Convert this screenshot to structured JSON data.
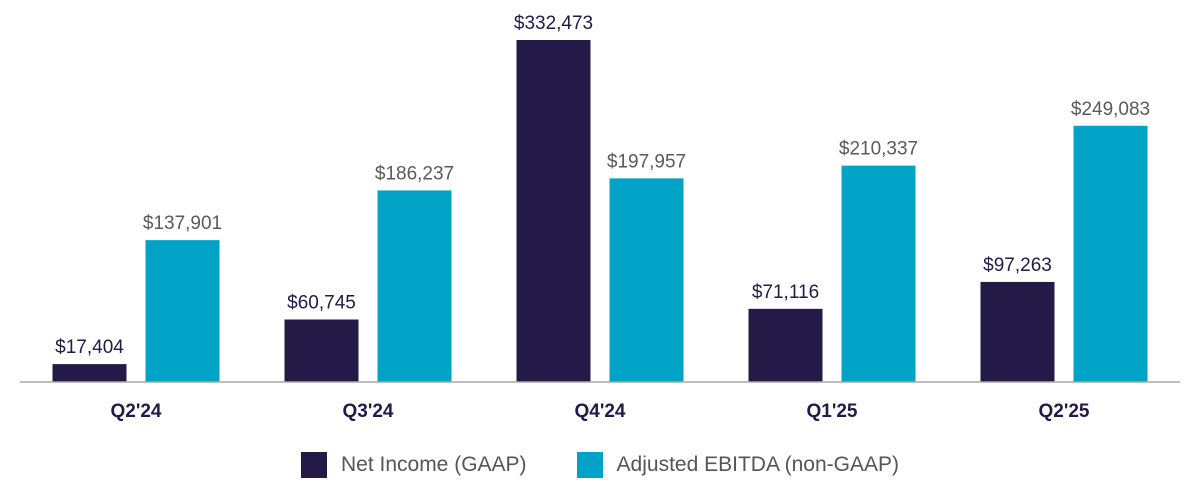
{
  "chart_data": {
    "type": "bar",
    "title": "",
    "xlabel": "",
    "ylabel": "",
    "categories": [
      "Q2'24",
      "Q3'24",
      "Q4'24",
      "Q1'25",
      "Q2'25"
    ],
    "series": [
      {
        "name": "Net Income (GAAP)",
        "color": "#231a48",
        "label_color": "#231a48",
        "values": [
          17404,
          60745,
          332473,
          71116,
          97263
        ],
        "value_labels": [
          "$17,404",
          "$60,745",
          "$332,473",
          "$71,116",
          "$97,263"
        ]
      },
      {
        "name": "Adjusted EBITDA (non-GAAP)",
        "color": "#00a3c6",
        "label_color": "#5a5a5a",
        "values": [
          137901,
          186237,
          197957,
          210337,
          249083
        ],
        "value_labels": [
          "$137,901",
          "$186,237",
          "$197,957",
          "$210,337",
          "$249,083"
        ]
      }
    ],
    "ylim": [
      0,
      332473
    ],
    "grid": false,
    "legend_position": "bottom-center"
  }
}
